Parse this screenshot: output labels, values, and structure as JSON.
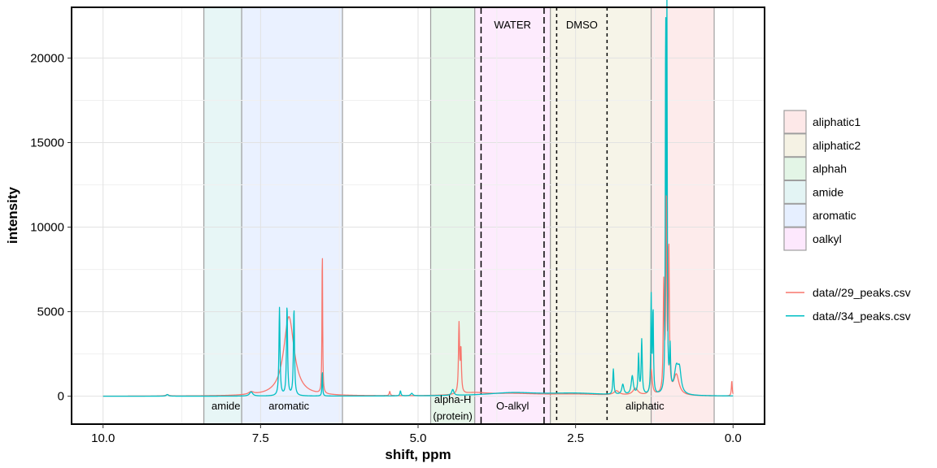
{
  "chart_data": {
    "type": "line",
    "title": "",
    "xlabel": "shift, ppm",
    "ylabel": "intensity",
    "x_reversed": true,
    "xlim": [
      10.5,
      -0.5
    ],
    "ylim": [
      -1650,
      23000
    ],
    "x_ticks": [
      10.0,
      7.5,
      5.0,
      2.5,
      0.0
    ],
    "x_tick_labels": [
      "10.0",
      "7.5",
      "5.0",
      "2.5",
      "0.0"
    ],
    "y_ticks": [
      0,
      5000,
      10000,
      15000,
      20000
    ],
    "y_tick_labels": [
      "0",
      "5000",
      "10000",
      "15000",
      "20000"
    ],
    "grid": true,
    "legend_position": "right",
    "regions": [
      {
        "name": "amide",
        "from": 8.4,
        "to": 7.8,
        "color": "#e3f4f4"
      },
      {
        "name": "aromatic",
        "from": 7.8,
        "to": 6.2,
        "color": "#e6efff"
      },
      {
        "name": "alphah",
        "from": 4.8,
        "to": 4.1,
        "color": "#e3f5e6"
      },
      {
        "name": "oalkyl",
        "from": 4.1,
        "to": 2.9,
        "color": "#fde8fd"
      },
      {
        "name": "aliphatic2",
        "from": 2.9,
        "to": 1.3,
        "color": "#f5f2e4"
      },
      {
        "name": "aliphatic1",
        "from": 1.3,
        "to": 0.3,
        "color": "#fde8e8"
      }
    ],
    "region_labels": [
      {
        "text": "amide",
        "x": 8.05,
        "y": -550
      },
      {
        "text": "aromatic",
        "x": 7.05,
        "y": -550
      },
      {
        "text": "alpha-H",
        "x": 4.45,
        "y": -150
      },
      {
        "text": "(protein)",
        "x": 4.45,
        "y": -1150
      },
      {
        "text": "O-alkyl",
        "x": 3.5,
        "y": -550
      },
      {
        "text": "aliphatic",
        "x": 1.4,
        "y": -550
      }
    ],
    "reference_lines": [
      {
        "x": 4.0,
        "style": "longdash"
      },
      {
        "x": 3.0,
        "style": "longdash"
      },
      {
        "x": 2.8,
        "style": "dotted"
      },
      {
        "x": 2.0,
        "style": "dotted"
      }
    ],
    "reference_labels": [
      {
        "text": "WATER",
        "x": 3.5,
        "y": 22000
      },
      {
        "text": "DMSO",
        "x": 2.4,
        "y": 22000
      }
    ],
    "legend_regions": [
      "aliphatic1",
      "aliphatic2",
      "alphah",
      "amide",
      "aromatic",
      "oalkyl"
    ],
    "series": [
      {
        "name": "data//29_peaks.csv",
        "color": "#f8766d",
        "baseline": 0,
        "peaks": [
          {
            "x": 8.98,
            "h": 80,
            "w": 0.03
          },
          {
            "x": 7.65,
            "h": 150,
            "w": 0.05
          },
          {
            "x": 7.05,
            "h": 4700,
            "w": 0.1
          },
          {
            "x": 6.52,
            "h": 8700,
            "w": 0.006
          },
          {
            "x": 5.45,
            "h": 250,
            "w": 0.01
          },
          {
            "x": 4.35,
            "h": 4050,
            "w": 0.01
          },
          {
            "x": 4.32,
            "h": 2500,
            "w": 0.01
          },
          {
            "x": 4.1,
            "h": 150,
            "w": 0.25
          },
          {
            "x": 3.5,
            "h": 120,
            "w": 0.5
          },
          {
            "x": 2.5,
            "h": 100,
            "w": 0.6
          },
          {
            "x": 1.85,
            "h": 250,
            "w": 0.05
          },
          {
            "x": 1.55,
            "h": 400,
            "w": 0.05
          },
          {
            "x": 1.3,
            "h": 1500,
            "w": 0.02
          },
          {
            "x": 1.1,
            "h": 6300,
            "w": 0.01
          },
          {
            "x": 1.06,
            "h": 13000,
            "w": 0.008
          },
          {
            "x": 1.02,
            "h": 8500,
            "w": 0.01
          },
          {
            "x": 0.9,
            "h": 1200,
            "w": 0.05
          },
          {
            "x": 0.02,
            "h": 900,
            "w": 0.008
          }
        ]
      },
      {
        "name": "data//34_peaks.csv",
        "color": "#00bfc4",
        "baseline": 0,
        "peaks": [
          {
            "x": 8.98,
            "h": 100,
            "w": 0.02
          },
          {
            "x": 7.65,
            "h": 250,
            "w": 0.03
          },
          {
            "x": 7.2,
            "h": 5200,
            "w": 0.01
          },
          {
            "x": 7.08,
            "h": 5300,
            "w": 0.01
          },
          {
            "x": 6.97,
            "h": 5150,
            "w": 0.01
          },
          {
            "x": 6.52,
            "h": 1500,
            "w": 0.006
          },
          {
            "x": 5.28,
            "h": 300,
            "w": 0.01
          },
          {
            "x": 5.1,
            "h": 150,
            "w": 0.02
          },
          {
            "x": 4.45,
            "h": 350,
            "w": 0.02
          },
          {
            "x": 3.5,
            "h": 180,
            "w": 0.5
          },
          {
            "x": 2.5,
            "h": 150,
            "w": 0.6
          },
          {
            "x": 1.9,
            "h": 1500,
            "w": 0.01
          },
          {
            "x": 1.75,
            "h": 600,
            "w": 0.02
          },
          {
            "x": 1.6,
            "h": 1100,
            "w": 0.02
          },
          {
            "x": 1.5,
            "h": 2300,
            "w": 0.01
          },
          {
            "x": 1.45,
            "h": 3200,
            "w": 0.01
          },
          {
            "x": 1.3,
            "h": 5700,
            "w": 0.008
          },
          {
            "x": 1.27,
            "h": 4900,
            "w": 0.008
          },
          {
            "x": 1.07,
            "h": 21900,
            "w": 0.006
          },
          {
            "x": 1.05,
            "h": 21700,
            "w": 0.006
          },
          {
            "x": 1.0,
            "h": 2500,
            "w": 0.01
          },
          {
            "x": 0.9,
            "h": 1500,
            "w": 0.04
          },
          {
            "x": 0.85,
            "h": 1200,
            "w": 0.03
          }
        ]
      }
    ]
  }
}
